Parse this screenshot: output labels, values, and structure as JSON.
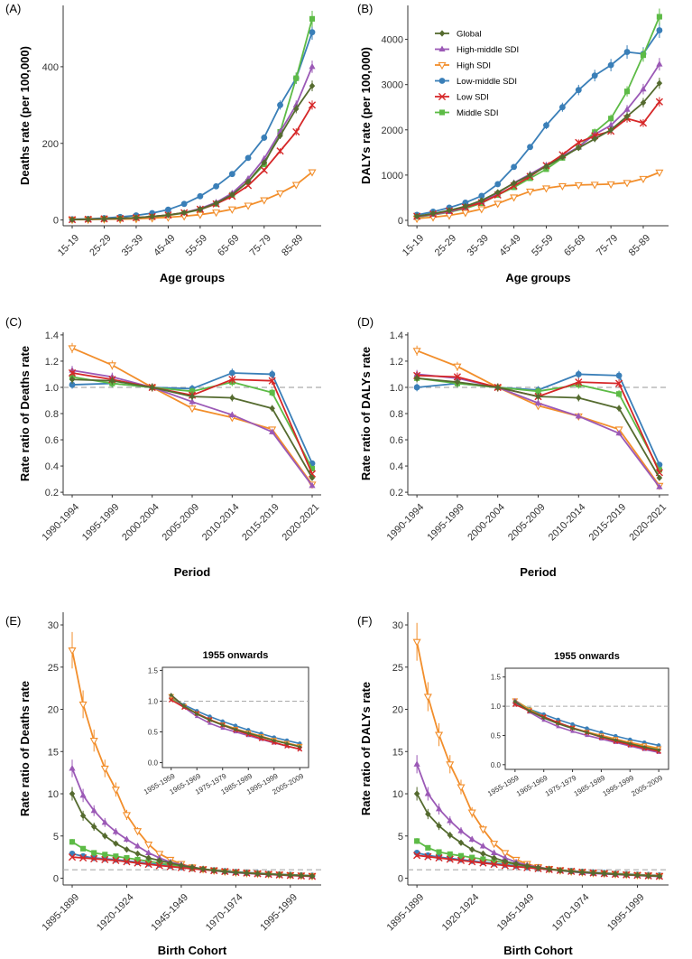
{
  "series_styles": [
    {
      "name": "Global",
      "color": "#556B2F",
      "marker": "diamond"
    },
    {
      "name": "High-middle SDI",
      "color": "#9B59B6",
      "marker": "triangle-up"
    },
    {
      "name": "High SDI",
      "color": "#F28E2B",
      "marker": "triangle-down-open"
    },
    {
      "name": "Low-middle SDI",
      "color": "#3A7FB8",
      "marker": "circle"
    },
    {
      "name": "Low SDI",
      "color": "#D62728",
      "marker": "x"
    },
    {
      "name": "Middle SDI",
      "color": "#5DBB46",
      "marker": "square"
    }
  ],
  "reference_line_color": "#AAAAAA",
  "chart_data": [
    {
      "panel": "(A)",
      "type": "line",
      "xlabel": "Age groups",
      "ylabel": "Deaths rate (per 100,000)",
      "categories": [
        "15-19",
        "20-24",
        "25-29",
        "30-34",
        "35-39",
        "40-44",
        "45-49",
        "50-54",
        "55-59",
        "60-64",
        "65-69",
        "70-74",
        "75-79",
        "80-84",
        "85-89",
        "90-94"
      ],
      "ticks": [
        "15-19",
        "25-29",
        "35-39",
        "45-49",
        "55-59",
        "65-69",
        "75-79",
        "85-89"
      ],
      "ylim": [
        -15,
        560
      ],
      "yticks": [
        0,
        200,
        400
      ],
      "series": [
        {
          "name": "Global",
          "values": [
            1,
            2,
            3,
            4,
            6,
            9,
            13,
            19,
            28,
            44,
            66,
            100,
            150,
            220,
            290,
            350
          ]
        },
        {
          "name": "High-middle SDI",
          "values": [
            1,
            2,
            3,
            4,
            6,
            9,
            13,
            19,
            30,
            46,
            70,
            108,
            160,
            230,
            300,
            400
          ]
        },
        {
          "name": "High SDI",
          "values": [
            1,
            1,
            2,
            2,
            3,
            5,
            7,
            10,
            14,
            20,
            28,
            38,
            52,
            70,
            92,
            125
          ]
        },
        {
          "name": "Low-middle SDI",
          "values": [
            2,
            3,
            5,
            8,
            12,
            18,
            27,
            42,
            62,
            88,
            120,
            162,
            215,
            300,
            370,
            490
          ]
        },
        {
          "name": "Low SDI",
          "values": [
            1,
            2,
            3,
            4,
            6,
            9,
            13,
            19,
            28,
            42,
            62,
            90,
            130,
            180,
            230,
            300
          ]
        },
        {
          "name": "Middle SDI",
          "values": [
            1,
            2,
            3,
            4,
            6,
            8,
            12,
            18,
            27,
            42,
            66,
            100,
            145,
            230,
            370,
            525
          ]
        }
      ]
    },
    {
      "panel": "(B)",
      "type": "line",
      "xlabel": "Age groups",
      "ylabel": "DALYs rate (per 100,000)",
      "categories": [
        "15-19",
        "20-24",
        "25-29",
        "30-34",
        "35-39",
        "40-44",
        "45-49",
        "50-54",
        "55-59",
        "60-64",
        "65-69",
        "70-74",
        "75-79",
        "80-84",
        "85-89",
        "90-94"
      ],
      "ticks": [
        "15-19",
        "25-29",
        "35-39",
        "45-49",
        "55-59",
        "65-69",
        "75-79",
        "85-89"
      ],
      "ylim": [
        -120,
        4750
      ],
      "yticks": [
        0,
        1000,
        2000,
        3000,
        4000
      ],
      "legend_position": "top-left",
      "series": [
        {
          "name": "Global",
          "values": [
            90,
            150,
            220,
            310,
            440,
            620,
            820,
            1000,
            1190,
            1400,
            1600,
            1800,
            2000,
            2300,
            2600,
            3030
          ]
        },
        {
          "name": "High-middle SDI",
          "values": [
            80,
            130,
            190,
            280,
            410,
            600,
            830,
            1020,
            1220,
            1420,
            1620,
            1900,
            2100,
            2450,
            2900,
            3450
          ]
        },
        {
          "name": "High SDI",
          "values": [
            40,
            70,
            110,
            170,
            250,
            370,
            510,
            640,
            710,
            760,
            780,
            790,
            800,
            830,
            920,
            1060
          ]
        },
        {
          "name": "Low-middle SDI",
          "values": [
            120,
            190,
            280,
            390,
            540,
            800,
            1180,
            1620,
            2100,
            2500,
            2880,
            3200,
            3430,
            3720,
            3680,
            4200
          ]
        },
        {
          "name": "Low SDI",
          "values": [
            90,
            140,
            210,
            290,
            390,
            560,
            760,
            970,
            1210,
            1450,
            1720,
            1870,
            1970,
            2250,
            2150,
            2620
          ]
        },
        {
          "name": "Middle SDI",
          "values": [
            70,
            120,
            180,
            260,
            380,
            560,
            730,
            930,
            1130,
            1380,
            1620,
            1950,
            2250,
            2850,
            3650,
            4500
          ]
        }
      ]
    },
    {
      "panel": "(C)",
      "type": "line",
      "xlabel": "Period",
      "ylabel": "Rate ratio of Deaths rate",
      "categories": [
        "1990-1994",
        "1995-1999",
        "2000-2004",
        "2005-2009",
        "2010-2014",
        "2015-2019",
        "2020-2021"
      ],
      "ticks": [
        "1990-1994",
        "1995-1999",
        "2000-2004",
        "2005-2009",
        "2010-2014",
        "2015-2019",
        "2020-2021"
      ],
      "ylim": [
        0.18,
        1.42
      ],
      "yticks": [
        0.2,
        0.4,
        0.6,
        0.8,
        1.0,
        1.2,
        1.4
      ],
      "hline": 1.0,
      "series": [
        {
          "name": "Global",
          "values": [
            1.06,
            1.05,
            1.0,
            0.93,
            0.92,
            0.84,
            0.31
          ]
        },
        {
          "name": "High-middle SDI",
          "values": [
            1.13,
            1.08,
            1.0,
            0.89,
            0.79,
            0.66,
            0.25
          ]
        },
        {
          "name": "High SDI",
          "values": [
            1.3,
            1.17,
            1.0,
            0.84,
            0.77,
            0.68,
            0.26
          ]
        },
        {
          "name": "Low-middle SDI",
          "values": [
            1.02,
            1.03,
            1.0,
            0.99,
            1.11,
            1.1,
            0.42
          ]
        },
        {
          "name": "Low SDI",
          "values": [
            1.11,
            1.06,
            1.0,
            0.94,
            1.06,
            1.05,
            0.34
          ]
        },
        {
          "name": "Middle SDI",
          "values": [
            1.08,
            1.03,
            1.0,
            0.97,
            1.04,
            0.96,
            0.38
          ]
        }
      ]
    },
    {
      "panel": "(D)",
      "type": "line",
      "xlabel": "Period",
      "ylabel": "Rate ratio of DALYs rate",
      "categories": [
        "1990-1994",
        "1995-1999",
        "2000-2004",
        "2005-2009",
        "2010-2014",
        "2015-2019",
        "2020-2021"
      ],
      "ticks": [
        "1990-1994",
        "1995-1999",
        "2000-2004",
        "2005-2009",
        "2010-2014",
        "2015-2019",
        "2020-2021"
      ],
      "ylim": [
        0.18,
        1.42
      ],
      "yticks": [
        0.2,
        0.4,
        0.6,
        0.8,
        1.0,
        1.2,
        1.4
      ],
      "hline": 1.0,
      "series": [
        {
          "name": "Global",
          "values": [
            1.07,
            1.04,
            1.0,
            0.93,
            0.92,
            0.84,
            0.31
          ]
        },
        {
          "name": "High-middle SDI",
          "values": [
            1.1,
            1.07,
            1.0,
            0.88,
            0.78,
            0.65,
            0.24
          ]
        },
        {
          "name": "High SDI",
          "values": [
            1.28,
            1.16,
            1.0,
            0.86,
            0.78,
            0.68,
            0.25
          ]
        },
        {
          "name": "Low-middle SDI",
          "values": [
            1.0,
            1.03,
            1.0,
            0.98,
            1.1,
            1.09,
            0.41
          ]
        },
        {
          "name": "Low SDI",
          "values": [
            1.09,
            1.08,
            1.0,
            0.93,
            1.04,
            1.03,
            0.35
          ]
        },
        {
          "name": "Middle SDI",
          "values": [
            1.07,
            1.03,
            1.0,
            0.97,
            1.02,
            0.95,
            0.37
          ]
        }
      ]
    },
    {
      "panel": "(E)",
      "type": "line",
      "xlabel": "Birth Cohort",
      "ylabel": "Rate ratio of Deaths rate",
      "categories": [
        "1895-1899",
        "1900-1904",
        "1905-1909",
        "1910-1914",
        "1915-1919",
        "1920-1924",
        "1925-1929",
        "1930-1934",
        "1935-1939",
        "1940-1944",
        "1945-1949",
        "1950-1954",
        "1955-1959",
        "1960-1964",
        "1965-1969",
        "1970-1974",
        "1975-1979",
        "1980-1984",
        "1985-1989",
        "1990-1994",
        "1995-1999",
        "2000-2004",
        "2005-2009"
      ],
      "ticks": [
        "1895-1899",
        "1920-1924",
        "1945-1949",
        "1970-1974",
        "1995-1999"
      ],
      "ylim": [
        -0.8,
        31.5
      ],
      "yticks": [
        0,
        5,
        10,
        15,
        20,
        25,
        30
      ],
      "hline": 1.0,
      "series": [
        {
          "name": "Global",
          "values": [
            10.0,
            7.4,
            6.1,
            5.0,
            4.1,
            3.4,
            2.9,
            2.4,
            2.1,
            1.8,
            1.5,
            1.3,
            1.1,
            0.92,
            0.79,
            0.69,
            0.61,
            0.54,
            0.48,
            0.42,
            0.36,
            0.31,
            0.26
          ]
        },
        {
          "name": "High-middle SDI",
          "values": [
            13.0,
            9.8,
            8.0,
            6.6,
            5.5,
            4.6,
            3.8,
            3.0,
            2.4,
            1.9,
            1.6,
            1.3,
            1.1,
            0.9,
            0.75,
            0.64,
            0.56,
            0.5,
            0.44,
            0.38,
            0.32,
            0.27,
            0.22
          ]
        },
        {
          "name": "High SDI",
          "values": [
            27.0,
            20.6,
            16.3,
            13.0,
            10.5,
            7.5,
            5.6,
            4.0,
            2.9,
            2.2,
            1.7,
            1.3,
            1.08,
            0.92,
            0.8,
            0.7,
            0.62,
            0.55,
            0.49,
            0.43,
            0.37,
            0.32,
            0.27
          ]
        },
        {
          "name": "Low-middle SDI",
          "values": [
            2.9,
            2.6,
            2.4,
            2.3,
            2.2,
            2.05,
            1.9,
            1.75,
            1.6,
            1.45,
            1.3,
            1.15,
            1.05,
            0.94,
            0.84,
            0.75,
            0.67,
            0.6,
            0.53,
            0.47,
            0.41,
            0.36,
            0.31
          ]
        },
        {
          "name": "Low SDI",
          "values": [
            2.5,
            2.4,
            2.3,
            2.2,
            2.1,
            1.95,
            1.8,
            1.65,
            1.5,
            1.38,
            1.25,
            1.12,
            1.02,
            0.9,
            0.8,
            0.7,
            0.61,
            0.53,
            0.46,
            0.39,
            0.33,
            0.27,
            0.22
          ]
        },
        {
          "name": "Middle SDI",
          "values": [
            4.3,
            3.5,
            3.0,
            2.8,
            2.6,
            2.4,
            2.2,
            2.0,
            1.8,
            1.6,
            1.4,
            1.2,
            1.05,
            0.92,
            0.8,
            0.7,
            0.62,
            0.55,
            0.48,
            0.42,
            0.36,
            0.31,
            0.26
          ]
        }
      ],
      "inset": {
        "title": "1955 onwards",
        "categories": [
          "1955-1959",
          "1960-1964",
          "1965-1969",
          "1970-1974",
          "1975-1979",
          "1980-1984",
          "1985-1989",
          "1990-1994",
          "1995-1999",
          "2000-2004",
          "2005-2009"
        ],
        "ticks": [
          "1955-1959",
          "1965-1969",
          "1975-1979",
          "1985-1989",
          "1995-1999",
          "2005-2009"
        ],
        "ylim": [
          -0.08,
          1.55
        ],
        "yticks": [
          0.0,
          0.5,
          1.0,
          1.5
        ],
        "yticklabels": [
          "0.0",
          "0.5",
          "1.0",
          "1.5"
        ],
        "hline": 1.0
      }
    },
    {
      "panel": "(F)",
      "type": "line",
      "xlabel": "Birth Cohort",
      "ylabel": "Rate ratio of DALYs rate",
      "categories": [
        "1895-1899",
        "1900-1904",
        "1905-1909",
        "1910-1914",
        "1915-1919",
        "1920-1924",
        "1925-1929",
        "1930-1934",
        "1935-1939",
        "1940-1944",
        "1945-1949",
        "1950-1954",
        "1955-1959",
        "1960-1964",
        "1965-1969",
        "1970-1974",
        "1975-1979",
        "1980-1984",
        "1985-1989",
        "1990-1994",
        "1995-1999",
        "2000-2004",
        "2005-2009"
      ],
      "ticks": [
        "1895-1899",
        "1920-1924",
        "1945-1949",
        "1970-1974",
        "1995-1999"
      ],
      "ylim": [
        -0.8,
        31.5
      ],
      "yticks": [
        0,
        5,
        10,
        15,
        20,
        25,
        30
      ],
      "hline": 1.0,
      "series": [
        {
          "name": "Global",
          "values": [
            10.0,
            7.6,
            6.2,
            5.1,
            4.2,
            3.4,
            2.9,
            2.4,
            2.0,
            1.7,
            1.45,
            1.25,
            1.08,
            0.92,
            0.8,
            0.7,
            0.62,
            0.55,
            0.48,
            0.42,
            0.36,
            0.3,
            0.25
          ]
        },
        {
          "name": "High-middle SDI",
          "values": [
            13.5,
            10.0,
            8.2,
            6.8,
            5.6,
            4.6,
            3.8,
            3.0,
            2.4,
            1.9,
            1.55,
            1.3,
            1.1,
            0.9,
            0.76,
            0.65,
            0.57,
            0.5,
            0.44,
            0.38,
            0.32,
            0.26,
            0.21
          ]
        },
        {
          "name": "High SDI",
          "values": [
            28.0,
            21.5,
            17.0,
            13.5,
            10.8,
            7.8,
            5.8,
            4.1,
            3.0,
            2.2,
            1.7,
            1.33,
            1.1,
            0.94,
            0.81,
            0.71,
            0.63,
            0.56,
            0.5,
            0.44,
            0.38,
            0.33,
            0.28
          ]
        },
        {
          "name": "Low-middle SDI",
          "values": [
            3.0,
            2.7,
            2.5,
            2.35,
            2.2,
            2.05,
            1.9,
            1.75,
            1.6,
            1.45,
            1.3,
            1.15,
            1.05,
            0.95,
            0.86,
            0.77,
            0.69,
            0.62,
            0.55,
            0.49,
            0.43,
            0.38,
            0.33
          ]
        },
        {
          "name": "Low SDI",
          "values": [
            2.7,
            2.55,
            2.4,
            2.25,
            2.1,
            1.95,
            1.8,
            1.65,
            1.5,
            1.38,
            1.25,
            1.13,
            1.03,
            0.92,
            0.82,
            0.72,
            0.63,
            0.55,
            0.47,
            0.4,
            0.34,
            0.28,
            0.23
          ]
        },
        {
          "name": "Middle SDI",
          "values": [
            4.4,
            3.6,
            3.1,
            2.85,
            2.65,
            2.45,
            2.25,
            2.05,
            1.85,
            1.65,
            1.45,
            1.25,
            1.1,
            0.95,
            0.82,
            0.72,
            0.63,
            0.56,
            0.49,
            0.43,
            0.37,
            0.31,
            0.26
          ]
        }
      ],
      "inset": {
        "title": "1955 onwards",
        "categories": [
          "1955-1959",
          "1960-1964",
          "1965-1969",
          "1970-1974",
          "1975-1979",
          "1980-1984",
          "1985-1989",
          "1990-1994",
          "1995-1999",
          "2000-2004",
          "2005-2009"
        ],
        "ticks": [
          "1955-1959",
          "1965-1969",
          "1975-1979",
          "1985-1989",
          "1995-1999",
          "2005-2009"
        ],
        "ylim": [
          -0.08,
          1.65
        ],
        "yticks": [
          0.0,
          0.5,
          1.0,
          1.5
        ],
        "yticklabels": [
          "0.0",
          "0.5",
          "1.0",
          "1.5"
        ],
        "hline": 1.0
      }
    }
  ]
}
